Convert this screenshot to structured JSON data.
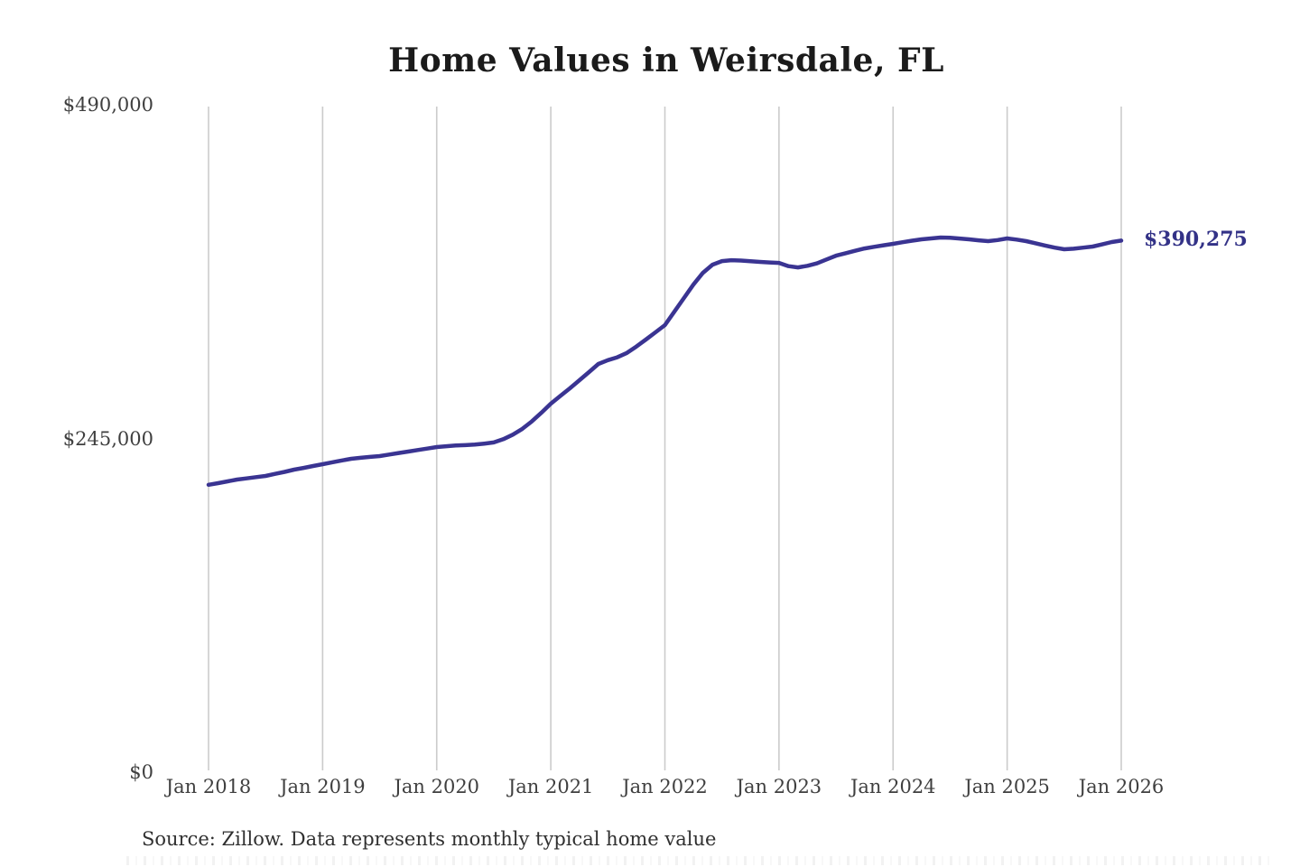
{
  "page": {
    "title": "Home Values in Weirsdale, FL",
    "source_note": "Source: Zillow. Data represents monthly typical home value"
  },
  "colors": {
    "background": "#ffffff",
    "title": "#1b1b1b",
    "axis_label": "#3f3f3f",
    "gridline": "#cbcbcb",
    "line": "#3a3492",
    "annotation": "#333287",
    "source": "#303030"
  },
  "chart_data": {
    "type": "line",
    "title": "Home Values in Weirsdale, FL",
    "xlabel": "",
    "ylabel": "",
    "ylim": [
      0,
      490000
    ],
    "grid": "vertical-only",
    "legend": "none",
    "x_tick_labels": [
      "Jan 2018",
      "Jan 2019",
      "Jan 2020",
      "Jan 2021",
      "Jan 2022",
      "Jan 2023",
      "Jan 2024",
      "Jan 2025",
      "Jan 2026"
    ],
    "y_ticks": [
      {
        "label": "$0",
        "value": 0
      },
      {
        "label": "$245,000",
        "value": 245000
      },
      {
        "label": "$490,000",
        "value": 490000
      }
    ],
    "series": [
      {
        "name": "Monthly typical home value",
        "frequency": "monthly",
        "start_month": "2018-01",
        "end_month": "2026-01",
        "values": [
          211000,
          212200,
          213500,
          214800,
          215700,
          216600,
          217500,
          219000,
          220500,
          222100,
          223400,
          224800,
          226100,
          227500,
          228800,
          230100,
          230800,
          231500,
          232100,
          233200,
          234300,
          235400,
          236500,
          237600,
          238700,
          239300,
          239800,
          240100,
          240500,
          241200,
          242100,
          244500,
          247800,
          252000,
          257500,
          263800,
          270500,
          276200,
          281800,
          287700,
          293700,
          299700,
          302500,
          304600,
          307800,
          312500,
          317600,
          322900,
          328200,
          338100,
          348100,
          358000,
          366600,
          372600,
          375200,
          375900,
          375600,
          375100,
          374600,
          374200,
          373900,
          371500,
          370600,
          371800,
          373600,
          376400,
          379200,
          381000,
          382800,
          384500,
          385700,
          386800,
          387900,
          389100,
          390200,
          391200,
          391900,
          392500,
          392400,
          391800,
          391200,
          390500,
          389900,
          390700,
          391900,
          391000,
          389900,
          388300,
          386600,
          385100,
          383900,
          384300,
          385100,
          385900,
          387500,
          389200,
          390275
        ]
      }
    ],
    "end_annotation": {
      "text": "$390,275",
      "value": 390275,
      "month": "2026-01"
    }
  }
}
